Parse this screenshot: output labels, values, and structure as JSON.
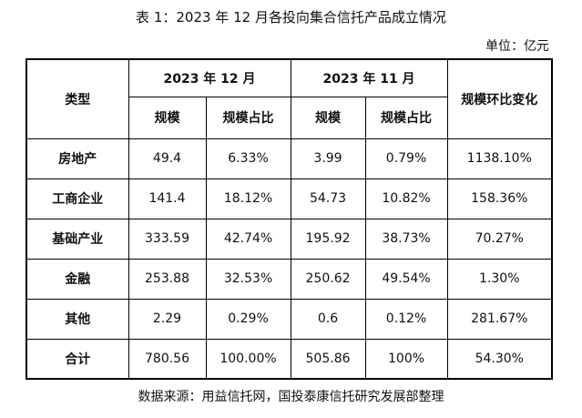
{
  "title": "表 1：2023 年 12 月各投向集合信托产品成立情况",
  "unit": "单位：亿元",
  "table": {
    "header": {
      "type": "类型",
      "dec": "2023 年 12 月",
      "nov": "2023 年 11 月",
      "change": "规模环比变化",
      "sub": [
        "规模",
        "规模占比",
        "规模",
        "规模占比"
      ]
    },
    "rows": [
      [
        "房地产",
        "49.4",
        "6.33%",
        "3.99",
        "0.79%",
        "1138.10%"
      ],
      [
        "工商企业",
        "141.4",
        "18.12%",
        "54.73",
        "10.82%",
        "158.36%"
      ],
      [
        "基础产业",
        "333.59",
        "42.74%",
        "195.92",
        "38.73%",
        "70.27%"
      ],
      [
        "金融",
        "253.88",
        "32.53%",
        "250.62",
        "49.54%",
        "1.30%"
      ],
      [
        "其他",
        "2.29",
        "0.29%",
        "0.6",
        "0.12%",
        "281.67%"
      ],
      [
        "合计",
        "780.56",
        "100.00%",
        "505.86",
        "100%",
        "54.30%"
      ]
    ]
  },
  "source": "数据来源：用益信托网，国投泰康信托研究发展部整理"
}
